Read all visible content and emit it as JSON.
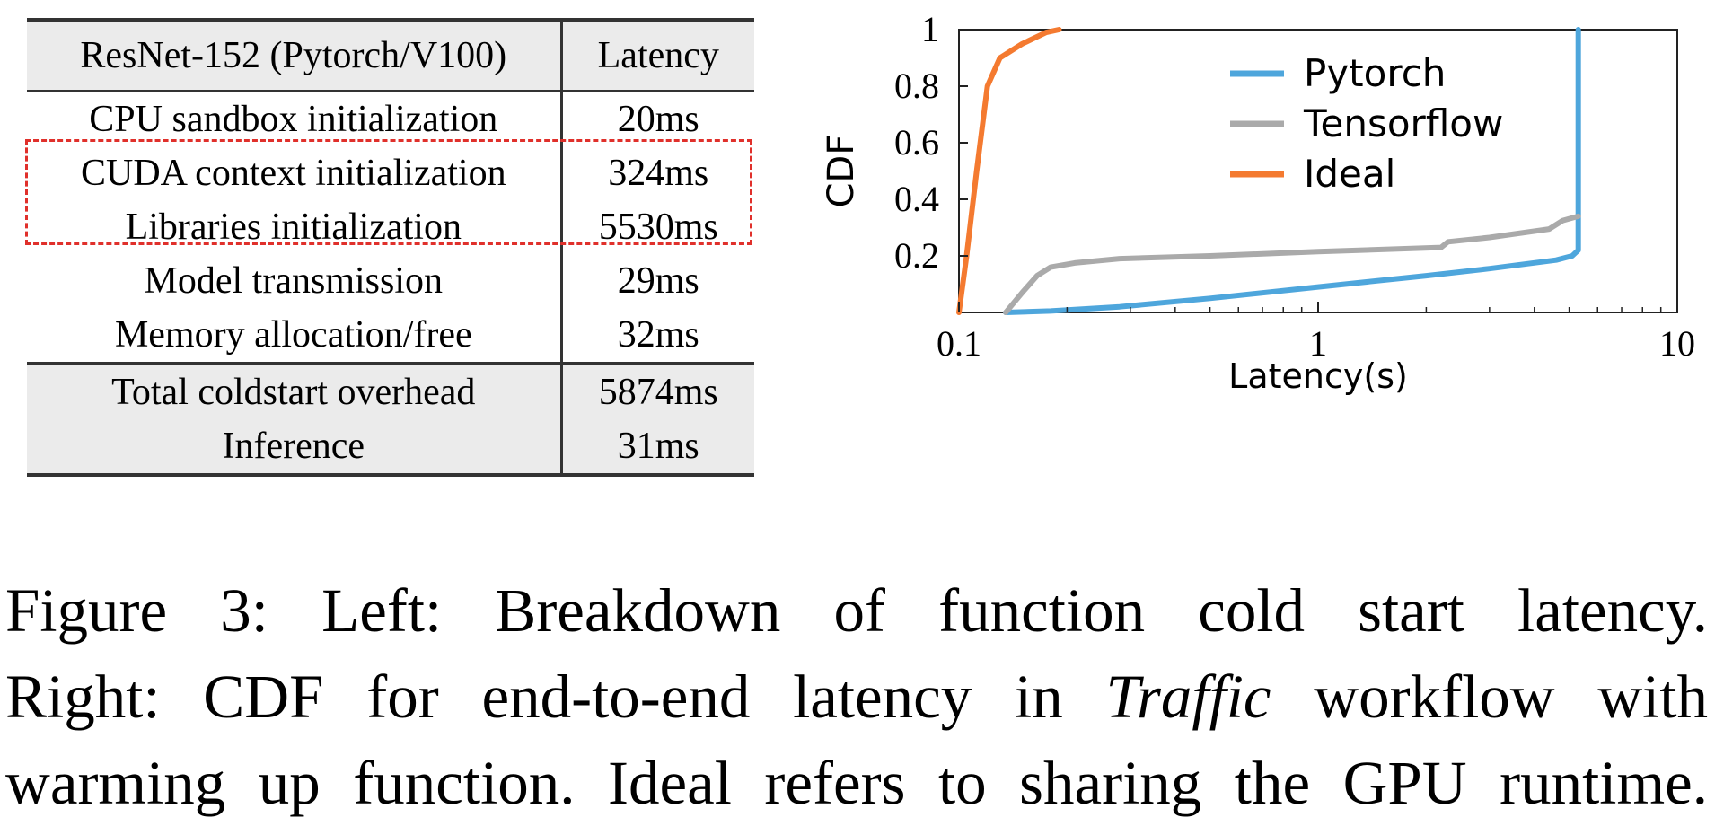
{
  "table": {
    "header": [
      "ResNet-152  (Pytorch/V100)",
      "Latency"
    ],
    "rows": [
      [
        "CPU sandbox initialization",
        "20ms"
      ],
      [
        "CUDA context initialization",
        "324ms"
      ],
      [
        "Libraries initialization",
        "5530ms"
      ],
      [
        "Model transmission",
        "29ms"
      ],
      [
        "Memory allocation/free",
        "32ms"
      ]
    ],
    "totals": [
      [
        "Total coldstart overhead",
        "5874ms"
      ],
      [
        "Inference",
        "31ms"
      ]
    ],
    "highlight_color": "#e0302b"
  },
  "chart_data": {
    "type": "line",
    "xlabel": "Latency(s)",
    "ylabel": "CDF",
    "xscale": "log",
    "xlim": [
      0.1,
      10
    ],
    "ylim": [
      0,
      1
    ],
    "xticks": [
      "0.1",
      "1",
      "10"
    ],
    "yticks": [
      "0.2",
      "0.4",
      "0.6",
      "0.8",
      "1"
    ],
    "grid": false,
    "legend_position": "top-right",
    "series": [
      {
        "name": "Pytorch",
        "color": "#4ea6dc",
        "points": [
          [
            0.135,
            0.0
          ],
          [
            0.18,
            0.005
          ],
          [
            0.28,
            0.02
          ],
          [
            0.5,
            0.05
          ],
          [
            1.0,
            0.09
          ],
          [
            2.0,
            0.13
          ],
          [
            3.0,
            0.155
          ],
          [
            4.6,
            0.185
          ],
          [
            5.1,
            0.2
          ],
          [
            5.3,
            0.22
          ],
          [
            5.3,
            1.0
          ]
        ]
      },
      {
        "name": "Tensorflow",
        "color": "#aaaaaa",
        "points": [
          [
            0.135,
            0.0
          ],
          [
            0.15,
            0.07
          ],
          [
            0.165,
            0.13
          ],
          [
            0.18,
            0.16
          ],
          [
            0.21,
            0.175
          ],
          [
            0.28,
            0.19
          ],
          [
            0.5,
            0.2
          ],
          [
            1.0,
            0.215
          ],
          [
            2.2,
            0.23
          ],
          [
            2.3,
            0.25
          ],
          [
            3.0,
            0.265
          ],
          [
            4.4,
            0.295
          ],
          [
            4.8,
            0.325
          ],
          [
            5.3,
            0.34
          ]
        ]
      },
      {
        "name": "Ideal",
        "color": "#f47a30",
        "points": [
          [
            0.1,
            0.0
          ],
          [
            0.105,
            0.2
          ],
          [
            0.112,
            0.5
          ],
          [
            0.12,
            0.8
          ],
          [
            0.13,
            0.9
          ],
          [
            0.15,
            0.95
          ],
          [
            0.175,
            0.99
          ],
          [
            0.19,
            1.0
          ]
        ]
      }
    ]
  },
  "caption": {
    "line1": [
      "Figure",
      "3:",
      "Left:",
      "Breakdown",
      "of",
      "function",
      "cold",
      "start",
      "latency."
    ],
    "line2_before": "Right: CDF for end-to-end latency in",
    "line2_italic": "Traffic",
    "line2_after": "workflow with",
    "line3": "warming up function. Ideal refers to sharing the GPU runtime."
  }
}
